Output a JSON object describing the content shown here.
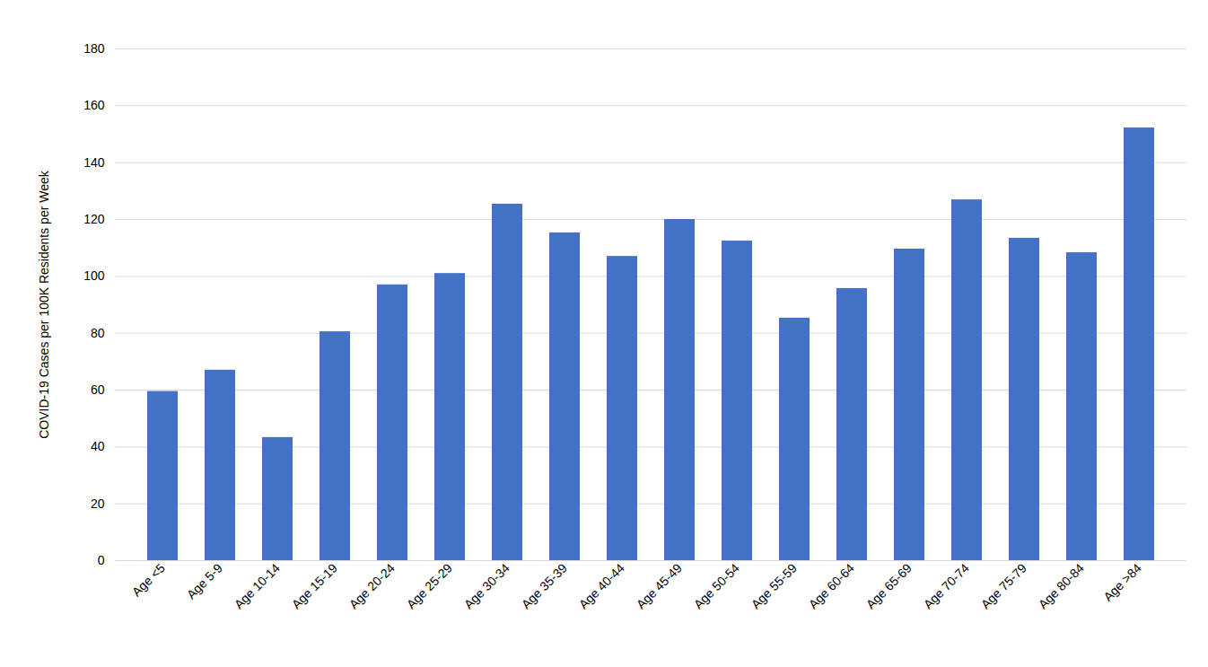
{
  "chart_data": {
    "type": "bar",
    "y_label": "COVID-19 Cases per 100K Residents per Week",
    "categories": [
      "Age <5",
      "Age 5-9",
      "Age 10-14",
      "Age 15-19",
      "Age 20-24",
      "Age 25-29",
      "Age 30-34",
      "Age 35-39",
      "Age 40-44",
      "Age 45-49",
      "Age 50-54",
      "Age 55-59",
      "Age 60-64",
      "Age 65-69",
      "Age 70-74",
      "Age 75-79",
      "Age 80-84",
      "Age >84"
    ],
    "values": [
      59.5,
      67,
      43.3,
      80.5,
      97,
      101,
      125.4,
      115.3,
      107,
      120,
      112.4,
      85.3,
      95.7,
      109.6,
      126.9,
      113.4,
      108.3,
      152.2
    ],
    "color": "#4472c4",
    "ylim": [
      0,
      180
    ],
    "yticks": [
      0,
      20,
      40,
      60,
      80,
      100,
      120,
      140,
      160,
      180
    ],
    "grid": true
  }
}
